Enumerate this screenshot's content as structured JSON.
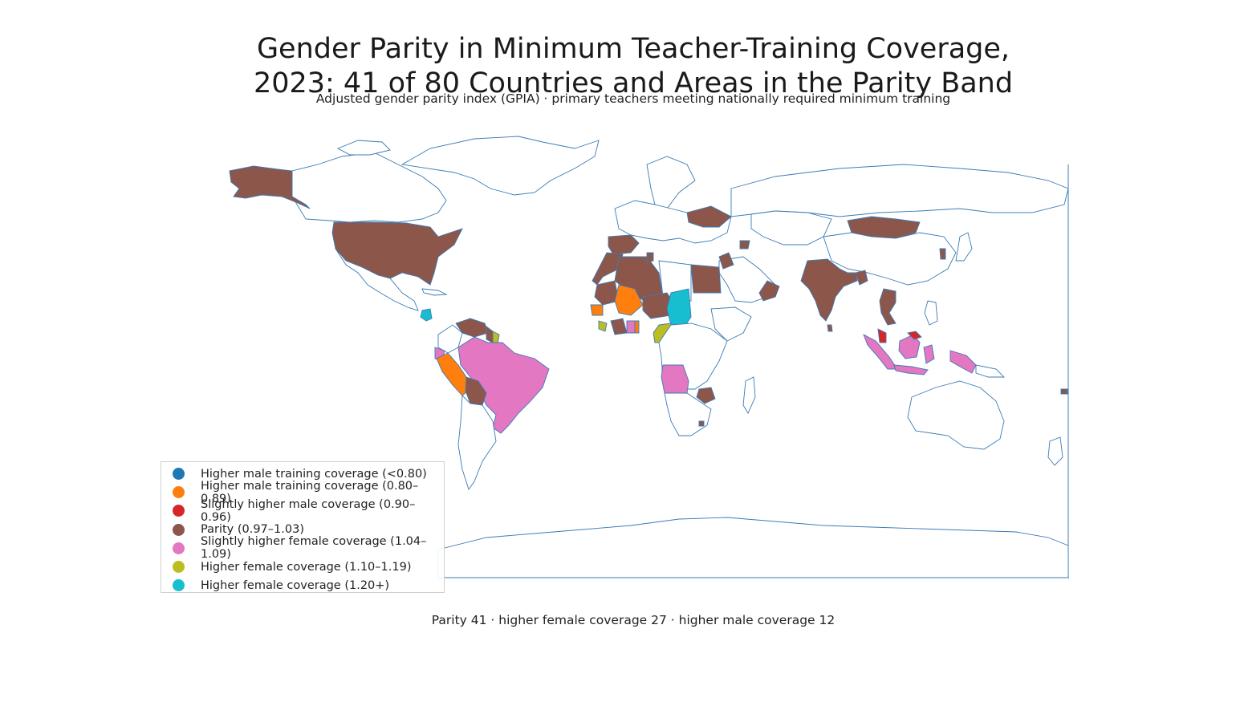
{
  "title_line1": "Gender Parity in Minimum Teacher-Training Coverage,",
  "title_line2": "2023: 41 of 80 Countries and Areas in the Parity Band",
  "subtitle": "Adjusted gender parity index (GPIA) · primary teachers meeting nationally required minimum training",
  "footer": "Parity 41 · higher female coverage 27 · higher male coverage 12",
  "legend": [
    {
      "label": "Higher male training coverage (<0.80)",
      "color": "#1f77b4"
    },
    {
      "label": "Higher male training coverage (0.80–0.89)",
      "color": "#ff7f0e"
    },
    {
      "label": "Slightly higher male coverage (0.90–0.96)",
      "color": "#d62728"
    },
    {
      "label": "Parity (0.97–1.03)",
      "color": "#8c564b"
    },
    {
      "label": "Slightly higher female coverage (1.04–1.09)",
      "color": "#e377c2"
    },
    {
      "label": "Higher female coverage (1.10–1.19)",
      "color": "#bcbd22"
    },
    {
      "label": "Higher female coverage (1.20+)",
      "color": "#17becf"
    }
  ],
  "colors": {
    "outline": "#3b7bb5",
    "no_data": "#ffffff"
  }
}
